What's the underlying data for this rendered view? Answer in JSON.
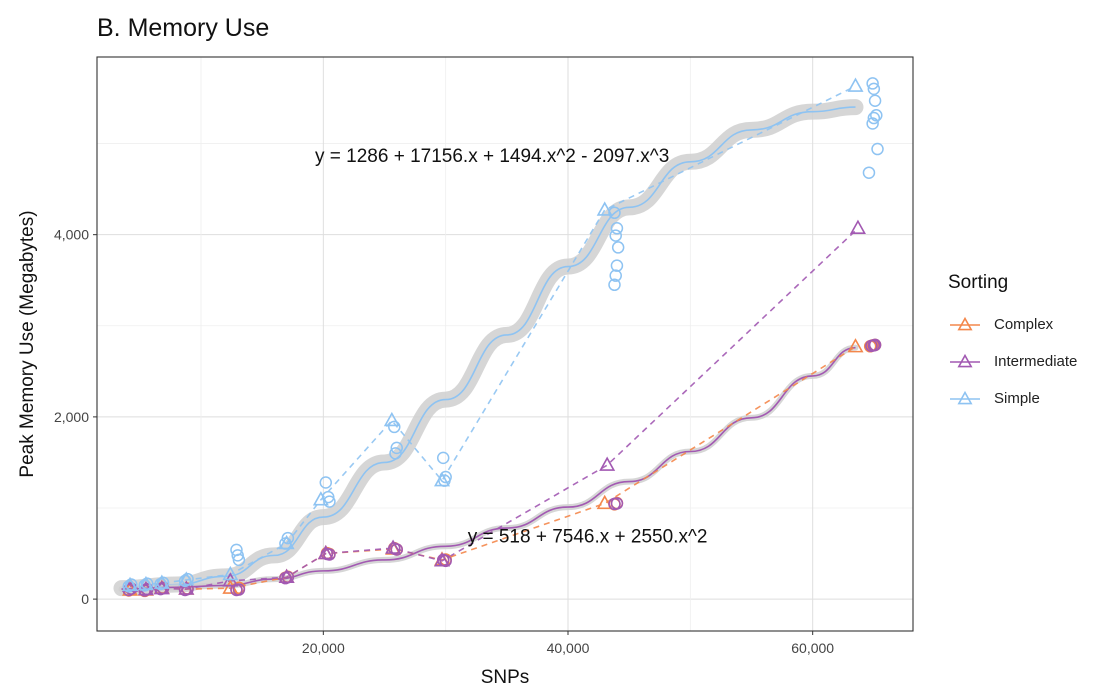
{
  "chart_data": {
    "type": "scatter",
    "title": "B. Memory Use",
    "xlabel": "SNPs",
    "ylabel": "Peak Memory Use (Megabytes)",
    "xlim": [
      1500,
      68200
    ],
    "ylim": [
      -350,
      5950
    ],
    "x_ticks": [
      20000,
      40000,
      60000
    ],
    "x_tick_labels": [
      "20,000",
      "40,000",
      "60,000"
    ],
    "y_ticks": [
      0,
      2000,
      4000
    ],
    "y_tick_labels": [
      "0",
      "2,000",
      "4,000"
    ],
    "grid": true,
    "legend": {
      "title": "Sorting",
      "position": "right"
    },
    "annotations": [
      {
        "text": "y = 1286 + 17156.x + 1494.x^2 - 2097.x^3",
        "x": 33800,
        "y": 4800
      },
      {
        "text": "y = 518 + 7546.x + 2550.x^2",
        "x": 41600,
        "y": 620
      }
    ],
    "series": [
      {
        "name": "Complex",
        "color": "#F4874B",
        "marker": "triangle",
        "points": [
          [
            4200,
            100
          ],
          [
            5500,
            100
          ],
          [
            6800,
            120
          ],
          [
            8800,
            110
          ],
          [
            12400,
            120
          ],
          [
            17000,
            240
          ],
          [
            20200,
            500
          ],
          [
            25700,
            550
          ],
          [
            29700,
            430
          ],
          [
            43000,
            1050
          ],
          [
            63500,
            2770
          ]
        ],
        "replicates": [
          [
            4100,
            95
          ],
          [
            4300,
            110
          ],
          [
            5400,
            90
          ],
          [
            5600,
            105
          ],
          [
            6700,
            115
          ],
          [
            6900,
            125
          ],
          [
            8700,
            105
          ],
          [
            8900,
            115
          ],
          [
            12900,
            110
          ],
          [
            13100,
            125
          ],
          [
            16900,
            235
          ],
          [
            17100,
            245
          ],
          [
            20300,
            505
          ],
          [
            20500,
            495
          ],
          [
            25800,
            560
          ],
          [
            26000,
            545
          ],
          [
            29800,
            425
          ],
          [
            30000,
            435
          ],
          [
            43800,
            1040
          ],
          [
            44000,
            1055
          ],
          [
            64700,
            2775
          ],
          [
            64900,
            2785
          ],
          [
            65100,
            2790
          ]
        ]
      },
      {
        "name": "Intermediate",
        "color": "#A259B2",
        "marker": "triangle",
        "points": [
          [
            4200,
            140
          ],
          [
            5500,
            105
          ],
          [
            6800,
            115
          ],
          [
            8800,
            110
          ],
          [
            12400,
            200
          ],
          [
            17000,
            240
          ],
          [
            20200,
            500
          ],
          [
            25700,
            560
          ],
          [
            29700,
            420
          ],
          [
            43200,
            1470
          ],
          [
            63700,
            4070
          ]
        ],
        "replicates": [
          [
            4100,
            100
          ],
          [
            4300,
            115
          ],
          [
            5400,
            95
          ],
          [
            5600,
            110
          ],
          [
            6700,
            110
          ],
          [
            6900,
            120
          ],
          [
            8700,
            100
          ],
          [
            8900,
            110
          ],
          [
            12900,
            100
          ],
          [
            13100,
            105
          ],
          [
            16900,
            230
          ],
          [
            17100,
            240
          ],
          [
            20300,
            495
          ],
          [
            20500,
            490
          ],
          [
            25800,
            555
          ],
          [
            26000,
            545
          ],
          [
            29800,
            430
          ],
          [
            30000,
            420
          ],
          [
            43800,
            1045
          ],
          [
            44000,
            1050
          ],
          [
            64800,
            2780
          ],
          [
            65000,
            2785
          ],
          [
            65100,
            2790
          ]
        ]
      },
      {
        "name": "Simple",
        "color": "#8EC3F2",
        "marker": "triangle",
        "points": [
          [
            4200,
            150
          ],
          [
            5500,
            160
          ],
          [
            6800,
            175
          ],
          [
            8800,
            210
          ],
          [
            12400,
            270
          ],
          [
            17000,
            610
          ],
          [
            19800,
            1090
          ],
          [
            25600,
            1960
          ],
          [
            29700,
            1300
          ],
          [
            43000,
            4270
          ],
          [
            63500,
            5630
          ]
        ],
        "replicates": [
          [
            4100,
            140
          ],
          [
            4300,
            160
          ],
          [
            5400,
            150
          ],
          [
            5600,
            170
          ],
          [
            6700,
            165
          ],
          [
            6900,
            180
          ],
          [
            8700,
            200
          ],
          [
            8900,
            220
          ],
          [
            12900,
            540
          ],
          [
            13000,
            480
          ],
          [
            13100,
            430
          ],
          [
            16900,
            610
          ],
          [
            17100,
            670
          ],
          [
            20200,
            1280
          ],
          [
            20400,
            1120
          ],
          [
            20500,
            1070
          ],
          [
            25800,
            1890
          ],
          [
            26000,
            1660
          ],
          [
            25900,
            1600
          ],
          [
            29800,
            1550
          ],
          [
            30000,
            1340
          ],
          [
            29900,
            1300
          ],
          [
            43800,
            4240
          ],
          [
            44000,
            4070
          ],
          [
            43900,
            3990
          ],
          [
            44100,
            3860
          ],
          [
            44000,
            3660
          ],
          [
            43900,
            3550
          ],
          [
            43800,
            3450
          ],
          [
            64600,
            4680
          ],
          [
            64900,
            5220
          ],
          [
            65000,
            5280
          ],
          [
            65100,
            5470
          ],
          [
            65200,
            5310
          ],
          [
            65300,
            4940
          ],
          [
            65000,
            5600
          ],
          [
            64900,
            5660
          ]
        ]
      }
    ],
    "fits": [
      {
        "name": "Simple",
        "color": "#8EC3F2",
        "x": [
          3500,
          8000,
          12000,
          16000,
          20000,
          25000,
          30000,
          35000,
          40000,
          45000,
          50000,
          55000,
          60000,
          63500
        ],
        "y": [
          120,
          160,
          250,
          480,
          900,
          1500,
          2190,
          2900,
          3650,
          4300,
          4800,
          5150,
          5350,
          5400
        ]
      },
      {
        "name": "Intermediate",
        "color": "#A259B2",
        "x": [
          3500,
          8000,
          12000,
          16000,
          20000,
          25000,
          30000,
          35000,
          40000,
          45000,
          50000,
          55000,
          60000,
          63500
        ],
        "y": [
          110,
          130,
          150,
          220,
          310,
          430,
          580,
          780,
          1010,
          1290,
          1620,
          1990,
          2450,
          2760
        ]
      }
    ]
  }
}
